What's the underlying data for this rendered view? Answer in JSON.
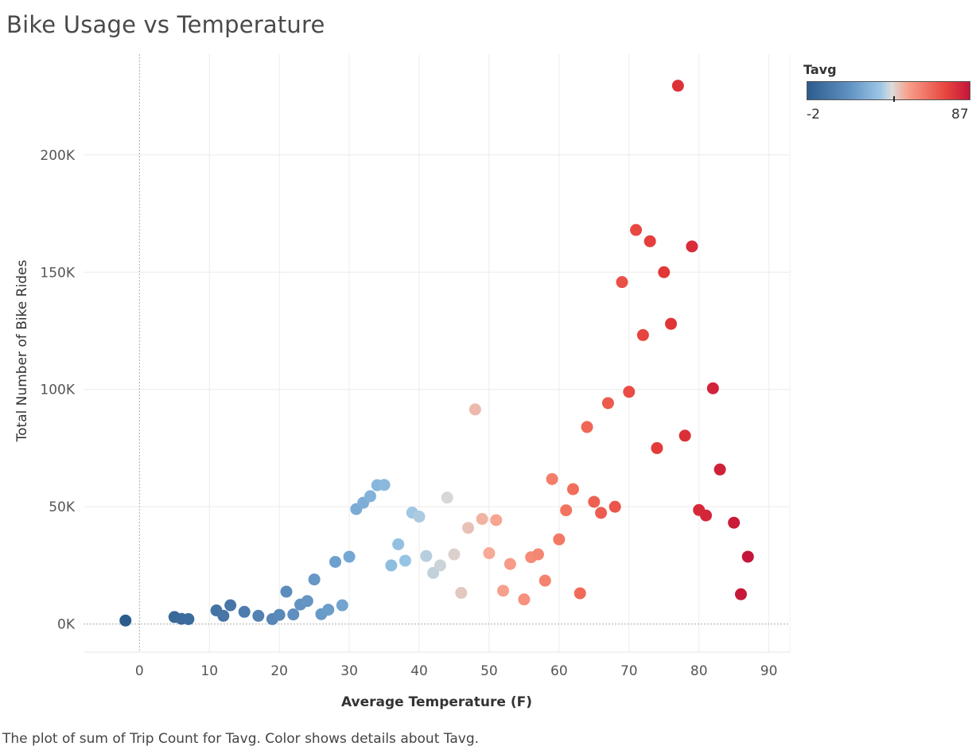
{
  "chart_data": {
    "type": "scatter",
    "title": "Bike Usage vs Temperature",
    "xlabel": "Average Temperature (F)",
    "ylabel": "Total Number of Bike Rides",
    "xlim": [
      -8,
      93
    ],
    "ylim": [
      -12000,
      243000
    ],
    "x_ticks": [
      0,
      10,
      20,
      30,
      40,
      50,
      60,
      70,
      80,
      90
    ],
    "x_tick_labels": [
      "0",
      "10",
      "20",
      "30",
      "40",
      "50",
      "60",
      "70",
      "80",
      "90"
    ],
    "y_ticks": [
      0,
      50000,
      100000,
      150000,
      200000
    ],
    "y_tick_labels": [
      "0K",
      "50K",
      "100K",
      "150K",
      "200K"
    ],
    "grid": true,
    "legend": {
      "title": "Tavg",
      "min_label": "-2",
      "max_label": "87",
      "placement": "top-right",
      "colors": [
        "#2b5c8c",
        "#5d8fc0",
        "#9cc6e6",
        "#dcdcdc",
        "#f7a08a",
        "#e8463f",
        "#c5153a"
      ]
    },
    "points": [
      {
        "x": -2,
        "y": 1500
      },
      {
        "x": 5,
        "y": 3000
      },
      {
        "x": 6,
        "y": 2200
      },
      {
        "x": 7,
        "y": 2100
      },
      {
        "x": 11,
        "y": 5800
      },
      {
        "x": 12,
        "y": 3500
      },
      {
        "x": 13,
        "y": 8000
      },
      {
        "x": 15,
        "y": 5200
      },
      {
        "x": 17,
        "y": 3500
      },
      {
        "x": 19,
        "y": 2100
      },
      {
        "x": 20,
        "y": 3900
      },
      {
        "x": 21,
        "y": 13800
      },
      {
        "x": 22,
        "y": 4100
      },
      {
        "x": 23,
        "y": 8300
      },
      {
        "x": 24,
        "y": 9800
      },
      {
        "x": 25,
        "y": 19000
      },
      {
        "x": 26,
        "y": 4200
      },
      {
        "x": 27,
        "y": 6100
      },
      {
        "x": 28,
        "y": 26500
      },
      {
        "x": 29,
        "y": 8000
      },
      {
        "x": 30,
        "y": 28700
      },
      {
        "x": 31,
        "y": 49000
      },
      {
        "x": 32,
        "y": 51700
      },
      {
        "x": 33,
        "y": 54500
      },
      {
        "x": 34,
        "y": 59200
      },
      {
        "x": 35,
        "y": 59300
      },
      {
        "x": 36,
        "y": 25000
      },
      {
        "x": 37,
        "y": 34000
      },
      {
        "x": 38,
        "y": 27000
      },
      {
        "x": 39,
        "y": 47500
      },
      {
        "x": 40,
        "y": 45800
      },
      {
        "x": 41,
        "y": 29000
      },
      {
        "x": 42,
        "y": 21800
      },
      {
        "x": 43,
        "y": 25000
      },
      {
        "x": 44,
        "y": 53900
      },
      {
        "x": 45,
        "y": 29700
      },
      {
        "x": 46,
        "y": 13300
      },
      {
        "x": 47,
        "y": 41000
      },
      {
        "x": 48,
        "y": 91500
      },
      {
        "x": 49,
        "y": 44800
      },
      {
        "x": 50,
        "y": 30200
      },
      {
        "x": 51,
        "y": 44300
      },
      {
        "x": 52,
        "y": 14200
      },
      {
        "x": 53,
        "y": 25600
      },
      {
        "x": 55,
        "y": 10500
      },
      {
        "x": 56,
        "y": 28500
      },
      {
        "x": 57,
        "y": 29700
      },
      {
        "x": 58,
        "y": 18500
      },
      {
        "x": 59,
        "y": 61800
      },
      {
        "x": 60,
        "y": 36100
      },
      {
        "x": 61,
        "y": 48500
      },
      {
        "x": 62,
        "y": 57500
      },
      {
        "x": 63,
        "y": 13100
      },
      {
        "x": 64,
        "y": 84000
      },
      {
        "x": 65,
        "y": 52100
      },
      {
        "x": 66,
        "y": 47400
      },
      {
        "x": 67,
        "y": 94200
      },
      {
        "x": 68,
        "y": 50000
      },
      {
        "x": 69,
        "y": 145800
      },
      {
        "x": 70,
        "y": 99000
      },
      {
        "x": 71,
        "y": 168000
      },
      {
        "x": 72,
        "y": 123200
      },
      {
        "x": 73,
        "y": 163200
      },
      {
        "x": 74,
        "y": 75000
      },
      {
        "x": 75,
        "y": 150000
      },
      {
        "x": 76,
        "y": 128000
      },
      {
        "x": 77,
        "y": 229500
      },
      {
        "x": 78,
        "y": 80300
      },
      {
        "x": 79,
        "y": 161000
      },
      {
        "x": 80,
        "y": 48600
      },
      {
        "x": 81,
        "y": 46300
      },
      {
        "x": 82,
        "y": 100500
      },
      {
        "x": 83,
        "y": 65900
      },
      {
        "x": 85,
        "y": 43200
      },
      {
        "x": 86,
        "y": 12700
      },
      {
        "x": 87,
        "y": 28700
      }
    ]
  },
  "caption": "The plot of sum of Trip Count for Tavg.  Color shows details about Tavg."
}
